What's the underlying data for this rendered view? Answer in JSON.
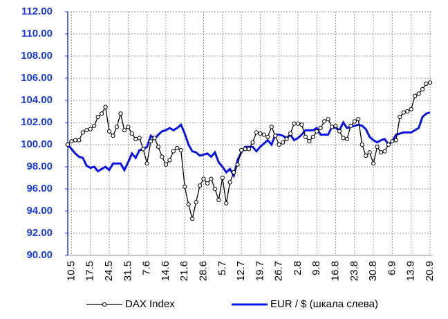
{
  "chart_data": {
    "type": "line",
    "categories": [
      null,
      "10.5",
      null,
      null,
      null,
      null,
      "17.5",
      null,
      null,
      null,
      null,
      "24.5",
      null,
      null,
      null,
      null,
      "31.5",
      null,
      null,
      null,
      null,
      "7.6",
      null,
      null,
      null,
      null,
      "14.6",
      null,
      null,
      null,
      null,
      "21.6",
      null,
      null,
      null,
      null,
      "28.6",
      null,
      null,
      null,
      null,
      "5.7",
      null,
      null,
      null,
      null,
      "12.7",
      null,
      null,
      null,
      null,
      "19.7",
      null,
      null,
      null,
      null,
      "26.7",
      null,
      null,
      null,
      null,
      "2.8",
      null,
      null,
      null,
      null,
      "9.8",
      null,
      null,
      null,
      null,
      "16.8",
      null,
      null,
      null,
      null,
      "23.8",
      null,
      null,
      null,
      null,
      "30.8",
      null,
      null,
      null,
      null,
      "6.9",
      null,
      null,
      null,
      null,
      "13.9",
      null,
      null,
      null,
      null,
      "20.9"
    ],
    "series": [
      {
        "name": "DAX Index",
        "color": "#000000",
        "marker": true,
        "values": [
          100.0,
          100.3,
          100.4,
          100.4,
          101.1,
          101.3,
          101.4,
          101.7,
          102.5,
          102.8,
          103.4,
          101.2,
          100.8,
          101.6,
          102.8,
          101.3,
          101.6,
          101.0,
          100.5,
          100.6,
          99.6,
          98.3,
          100.3,
          100.6,
          99.8,
          98.9,
          98.2,
          98.6,
          99.4,
          99.7,
          99.5,
          96.2,
          94.6,
          93.3,
          94.8,
          96.3,
          96.9,
          96.5,
          96.9,
          96.0,
          95.0,
          97.0,
          94.7,
          96.6,
          97.5,
          98.2,
          99.5,
          99.6,
          99.6,
          100.2,
          101.1,
          101.0,
          100.9,
          100.7,
          101.6,
          100.8,
          100.0,
          100.2,
          100.5,
          101.0,
          101.9,
          101.9,
          101.8,
          100.7,
          100.3,
          100.7,
          101.2,
          101.5,
          102.1,
          102.3,
          101.6,
          101.7,
          101.2,
          100.6,
          100.5,
          101.7,
          102.1,
          102.3,
          100.0,
          99.0,
          99.3,
          98.3,
          99.8,
          99.3,
          99.4,
          100.0,
          100.3,
          100.4,
          102.5,
          102.9,
          103.0,
          103.2,
          104.4,
          104.6,
          105.0,
          105.5,
          105.6
        ]
      },
      {
        "name": "EUR / $ (шкала слева)",
        "color": "#0a14e6",
        "marker": false,
        "values": [
          100.0,
          99.6,
          99.2,
          98.9,
          98.8,
          98.1,
          97.9,
          98.0,
          97.6,
          97.8,
          98.0,
          97.7,
          98.3,
          98.3,
          98.3,
          97.7,
          98.4,
          99.2,
          98.8,
          99.5,
          99.6,
          99.8,
          100.8,
          100.5,
          100.9,
          101.2,
          101.3,
          101.5,
          101.3,
          101.5,
          101.8,
          101.0,
          100.0,
          99.4,
          99.3,
          99.0,
          99.1,
          99.2,
          98.9,
          99.3,
          98.4,
          98.0,
          97.5,
          97.8,
          97.2,
          98.6,
          99.3,
          99.8,
          99.8,
          99.8,
          99.4,
          99.8,
          100.1,
          100.4,
          100.0,
          100.9,
          100.9,
          100.8,
          100.6,
          100.9,
          100.4,
          100.6,
          100.9,
          101.3,
          101.3,
          101.3,
          101.5,
          100.9,
          100.9,
          100.9,
          101.6,
          101.5,
          101.3,
          102.0,
          101.5,
          101.6,
          101.7,
          101.8,
          101.7,
          101.4,
          100.7,
          100.4,
          100.2,
          100.4,
          100.5,
          100.0,
          100.3,
          100.9,
          101.0,
          101.1,
          101.1,
          101.1,
          101.3,
          101.5,
          102.5,
          102.8,
          102.9
        ]
      }
    ],
    "ylim": [
      90,
      112
    ],
    "yticks": [
      {
        "value": 90,
        "label": "90.00"
      },
      {
        "value": 92,
        "label": "92.00"
      },
      {
        "value": 94,
        "label": "94.00"
      },
      {
        "value": 96,
        "label": "96.00"
      },
      {
        "value": 98,
        "label": "98.00"
      },
      {
        "value": 100,
        "label": "100.00"
      },
      {
        "value": 102,
        "label": "102.00"
      },
      {
        "value": 104,
        "label": "104.00"
      },
      {
        "value": 106,
        "label": "106.00"
      },
      {
        "value": 108,
        "label": "108.00"
      },
      {
        "value": 110,
        "label": "110.00"
      },
      {
        "value": 112,
        "label": "112.00"
      }
    ],
    "grid": true,
    "axis_color": "#1a3ad8",
    "legend": "bottom"
  }
}
